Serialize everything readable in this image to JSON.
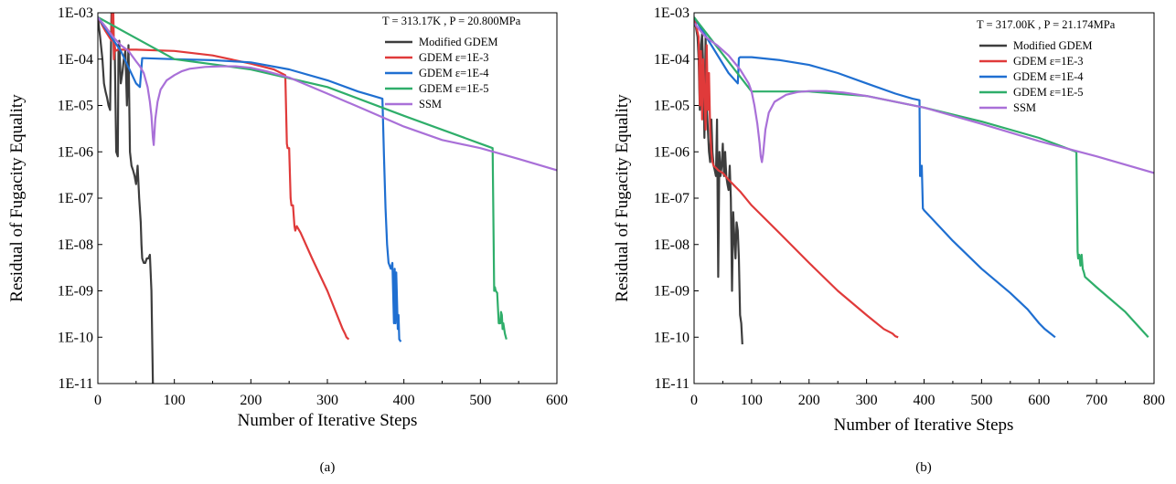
{
  "colors": {
    "modified": "#3d3d3d",
    "gdem3": "#e03a3a",
    "gdem4": "#1f6fd1",
    "gdem5": "#2fae6a",
    "ssm": "#a970d8"
  },
  "chart_data": [
    {
      "type": "line",
      "panel_label": "(a)",
      "condition": "T = 313.17K , P = 20.800MPa",
      "xlabel": "Number of Iterative Steps",
      "ylabel": "Residual of Fugacity Equality",
      "xlim": [
        0,
        600
      ],
      "ylim": [
        1e-11,
        0.001
      ],
      "yscale": "log",
      "xticks": [
        0,
        100,
        200,
        300,
        400,
        500,
        600
      ],
      "xtick_labels": [
        "0",
        "100",
        "200",
        "300",
        "400",
        "500",
        "600"
      ],
      "yticks": [
        1e-11,
        1e-10,
        1e-09,
        1e-08,
        1e-07,
        1e-06,
        1e-05,
        0.0001,
        0.001
      ],
      "ytick_labels": [
        "1E-11",
        "1E-10",
        "1E-09",
        "1E-08",
        "1E-07",
        "1E-06",
        "1E-05",
        "1E-04",
        "1E-03"
      ],
      "legend_position": "top-right",
      "grid": false,
      "series": [
        {
          "name": "Modified GDEM",
          "color_key": "modified",
          "x": [
            0,
            3,
            6,
            8,
            10,
            12,
            14,
            16,
            18,
            19,
            20,
            21,
            22,
            24,
            26,
            27,
            28,
            30,
            32,
            34,
            36,
            38,
            40,
            42,
            44,
            46,
            48,
            50,
            52,
            54,
            56,
            57,
            58,
            60,
            62,
            64,
            66,
            68,
            70,
            71,
            72
          ],
          "y": [
            0.0008,
            0.0003,
            0.0001,
            3e-05,
            2e-05,
            1.5e-05,
            1e-05,
            8e-06,
            0.0018,
            0.0003,
            0.0012,
            0.0001,
            0.0002,
            1e-06,
            8e-07,
            0.0002,
            0.00025,
            3e-05,
            5e-05,
            0.0001,
            0.00015,
            1e-05,
            0.0002,
            1e-06,
            5e-07,
            4e-07,
            3e-07,
            2e-07,
            5e-07,
            1e-07,
            3e-08,
            1e-08,
            5e-09,
            4e-09,
            4e-09,
            5e-09,
            5e-09,
            6e-09,
            1e-09,
            1e-10,
            1e-11
          ]
        },
        {
          "name": "GDEM ε=1E-3",
          "color_key": "gdem3",
          "x": [
            0,
            10,
            18,
            19,
            20,
            21,
            22,
            23,
            26,
            50,
            100,
            150,
            200,
            230,
            245,
            247,
            248,
            250,
            252,
            253,
            255,
            257,
            258,
            260,
            265,
            280,
            300,
            320,
            323,
            325,
            328
          ],
          "y": [
            0.0008,
            0.0004,
            0.00025,
            0.003,
            0.0025,
            0.0001,
            0.0002,
            0.00015,
            0.00016,
            0.00016,
            0.00015,
            0.00012,
            8e-05,
            6e-05,
            4.5e-05,
            1.5e-06,
            1.2e-06,
            1.2e-06,
            1e-07,
            7e-08,
            7e-08,
            2.5e-08,
            2e-08,
            2.5e-08,
            1.8e-08,
            5e-09,
            1e-09,
            1.5e-10,
            1.2e-10,
            1e-10,
            9e-11
          ]
        },
        {
          "name": "GDEM ε=1E-4",
          "color_key": "gdem4",
          "x": [
            0,
            30,
            50,
            55,
            58,
            60,
            100,
            150,
            200,
            250,
            300,
            340,
            360,
            372,
            374,
            376,
            378,
            380,
            383,
            385,
            387,
            388,
            389,
            390,
            392,
            393,
            394,
            395,
            396
          ],
          "y": [
            0.0008,
            0.00015,
            3e-05,
            2.5e-05,
            0.000105,
            0.000105,
            0.0001,
            9.5e-05,
            8.5e-05,
            6e-05,
            3.5e-05,
            2e-05,
            1.6e-05,
            1.4e-05,
            8e-07,
            6e-08,
            1e-08,
            4e-09,
            3e-09,
            4e-09,
            2e-10,
            3e-09,
            2e-10,
            2.5e-09,
            1.5e-10,
            3e-10,
            9e-11,
            8.5e-11,
            8e-11
          ]
        },
        {
          "name": "GDEM ε=1E-5",
          "color_key": "gdem5",
          "x": [
            0,
            100,
            200,
            300,
            400,
            500,
            516,
            518,
            519,
            520,
            522,
            524,
            526,
            527,
            528,
            529,
            530,
            532,
            534
          ],
          "y": [
            0.0008,
            0.0001,
            6e-05,
            2.5e-05,
            6e-06,
            1.5e-06,
            1.2e-06,
            1e-09,
            1.2e-09,
            1e-09,
            9e-10,
            2e-10,
            2e-10,
            3.5e-10,
            3e-10,
            1.5e-10,
            2e-10,
            1.2e-10,
            9e-11
          ]
        },
        {
          "name": "SSM",
          "color_key": "ssm",
          "x": [
            0,
            10,
            20,
            30,
            40,
            50,
            55,
            60,
            65,
            68,
            70,
            72,
            73,
            75,
            78,
            82,
            90,
            100,
            110,
            120,
            140,
            160,
            180,
            200,
            220,
            250,
            300,
            350,
            400,
            450,
            500,
            550,
            600
          ],
          "y": [
            0.0008,
            0.0005,
            0.0003,
            0.0002,
            0.00015,
            9e-05,
            7e-05,
            5e-05,
            2.5e-05,
            1.2e-05,
            6e-06,
            2e-06,
            1.4e-06,
            5e-06,
            1.2e-05,
            2.2e-05,
            3.5e-05,
            4.5e-05,
            5.5e-05,
            6.2e-05,
            6.8e-05,
            7e-05,
            7e-05,
            6.5e-05,
            5.5e-05,
            4e-05,
            1.8e-05,
            8e-06,
            3.5e-06,
            1.8e-06,
            1.2e-06,
            7e-07,
            4e-07
          ]
        }
      ]
    },
    {
      "type": "line",
      "panel_label": "(b)",
      "condition": "T = 317.00K , P = 21.174MPa",
      "xlabel": "Number of Iterative Steps",
      "ylabel": "Residual of Fugacity Equality",
      "xlim": [
        0,
        800
      ],
      "ylim": [
        1e-11,
        0.001
      ],
      "yscale": "log",
      "xticks": [
        0,
        100,
        200,
        300,
        400,
        500,
        600,
        700,
        800
      ],
      "xtick_labels": [
        "0",
        "100",
        "200",
        "300",
        "400",
        "500",
        "600",
        "700",
        "800"
      ],
      "yticks": [
        1e-11,
        1e-10,
        1e-09,
        1e-08,
        1e-07,
        1e-06,
        1e-05,
        0.0001,
        0.001
      ],
      "ytick_labels": [
        "1E-11",
        "1E-10",
        "1E-09",
        "1E-08",
        "1E-07",
        "1E-06",
        "1E-05",
        "1E-04",
        "1E-03"
      ],
      "legend_position": "top-right",
      "grid": false,
      "series": [
        {
          "name": "Modified GDEM",
          "color_key": "modified",
          "x": [
            0,
            3,
            6,
            8,
            10,
            12,
            14,
            16,
            18,
            20,
            22,
            24,
            26,
            28,
            30,
            32,
            34,
            36,
            38,
            40,
            42,
            44,
            46,
            48,
            50,
            52,
            54,
            56,
            58,
            60,
            62,
            64,
            66,
            68,
            70,
            72,
            74,
            76,
            78,
            80,
            82,
            84
          ],
          "y": [
            0.0007,
            0.0005,
            0.0003,
            0.0001,
            8e-06,
            0.0002,
            0.00035,
            6e-05,
            2e-06,
            0.0003,
            1e-05,
            3e-06,
            1e-06,
            6e-07,
            5e-06,
            1e-06,
            5e-07,
            4e-07,
            3e-07,
            5e-06,
            2e-09,
            1e-06,
            3e-07,
            5e-07,
            1.5e-06,
            3e-07,
            1e-06,
            3e-07,
            2e-07,
            1.5e-07,
            5e-07,
            1e-07,
            1e-09,
            5e-08,
            1.5e-08,
            5e-09,
            3e-08,
            2e-08,
            5e-09,
            3e-10,
            2e-10,
            7e-11
          ]
        },
        {
          "name": "GDEM ε=1E-3",
          "color_key": "gdem3",
          "x": [
            0,
            8,
            10,
            12,
            14,
            16,
            18,
            20,
            22,
            24,
            26,
            28,
            30,
            32,
            34,
            38,
            42,
            50,
            60,
            80,
            100,
            150,
            200,
            250,
            300,
            330,
            345,
            350,
            355
          ],
          "y": [
            0.0008,
            0.0003,
            1e-05,
            0.00015,
            5e-06,
            0.0001,
            2e-05,
            3e-06,
            0.0002,
            8e-06,
            5e-05,
            3e-06,
            1e-06,
            6e-07,
            5e-07,
            4.5e-07,
            4e-07,
            3.5e-07,
            2.5e-07,
            1.4e-07,
            7e-08,
            1.7e-08,
            4e-09,
            1e-09,
            3e-10,
            1.5e-10,
            1.2e-10,
            1.05e-10,
            1e-10
          ]
        },
        {
          "name": "GDEM ε=1E-4",
          "color_key": "gdem4",
          "x": [
            0,
            30,
            60,
            76,
            78,
            80,
            100,
            150,
            200,
            250,
            300,
            350,
            380,
            392,
            393,
            394,
            395,
            396,
            398,
            400,
            450,
            500,
            550,
            580,
            600,
            610,
            620,
            628
          ],
          "y": [
            0.0008,
            0.0002,
            5e-05,
            3e-05,
            0.000105,
            0.00011,
            0.00011,
            9.5e-05,
            7.5e-05,
            5e-05,
            3e-05,
            1.8e-05,
            1.4e-05,
            1.3e-05,
            3e-07,
            5e-07,
            3e-07,
            5e-07,
            6e-08,
            5.5e-08,
            1.2e-08,
            3e-09,
            9e-10,
            4e-10,
            2e-10,
            1.5e-10,
            1.2e-10,
            1e-10
          ]
        },
        {
          "name": "GDEM ε=1E-5",
          "color_key": "gdem5",
          "x": [
            0,
            100,
            200,
            300,
            400,
            500,
            600,
            665,
            667,
            668,
            670,
            672,
            674,
            676,
            678,
            680,
            700,
            750,
            790
          ],
          "y": [
            0.0008,
            2e-05,
            2e-05,
            1.6e-05,
            9e-06,
            4.5e-06,
            2e-06,
            1e-06,
            7e-09,
            5e-09,
            6e-09,
            3.5e-09,
            6e-09,
            3e-09,
            2.5e-09,
            2e-09,
            1.2e-09,
            3.5e-10,
            1e-10
          ]
        },
        {
          "name": "SSM",
          "color_key": "ssm",
          "x": [
            0,
            20,
            40,
            60,
            80,
            95,
            100,
            105,
            110,
            114,
            116,
            118,
            120,
            124,
            130,
            140,
            160,
            180,
            200,
            230,
            260,
            300,
            400,
            500,
            600,
            700,
            800
          ],
          "y": [
            0.0006,
            0.0003,
            0.0002,
            0.00012,
            6e-05,
            3e-05,
            2e-05,
            1e-05,
            4e-06,
            1.5e-06,
            8e-07,
            6e-07,
            9e-07,
            3e-06,
            7e-06,
            1.2e-05,
            1.7e-05,
            1.95e-05,
            2.05e-05,
            2.05e-05,
            1.9e-05,
            1.6e-05,
            9e-06,
            4e-06,
            1.7e-06,
            8e-07,
            3.5e-07
          ]
        }
      ]
    }
  ]
}
